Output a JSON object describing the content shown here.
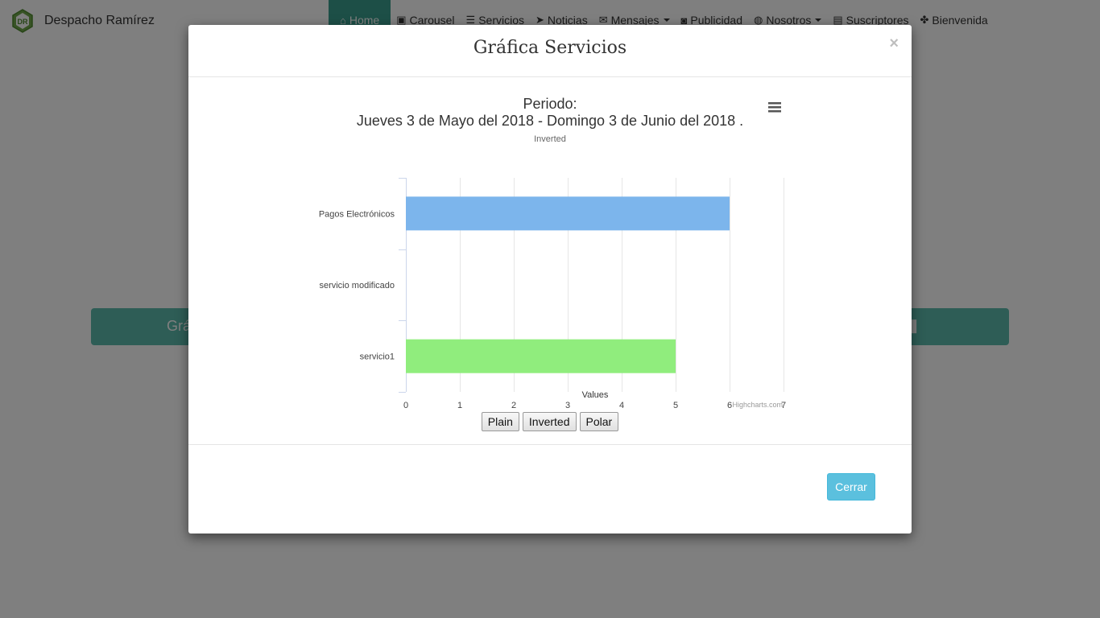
{
  "brand": {
    "name": "Despacho Ramírez",
    "logo_text": "DR"
  },
  "nav": [
    {
      "label": "Home",
      "icon": "home-icon",
      "glyph": "⌂"
    },
    {
      "label": "Carousel",
      "icon": "image-icon",
      "glyph": "▣"
    },
    {
      "label": "Servicios",
      "icon": "list-icon",
      "glyph": "☰"
    },
    {
      "label": "Noticias",
      "icon": "send-icon",
      "glyph": "➤"
    },
    {
      "label": "Mensajes",
      "icon": "envelope-icon",
      "glyph": "✉"
    },
    {
      "label": "Publicidad",
      "icon": "camera-icon",
      "glyph": "◙"
    },
    {
      "label": "Nosotros",
      "icon": "globe-icon",
      "glyph": "◍"
    },
    {
      "label": "Suscriptores",
      "icon": "list-alt-icon",
      "glyph": "▤"
    },
    {
      "label": "Bienvenida",
      "icon": "paw-icon",
      "glyph": "✤"
    }
  ],
  "page": {
    "grafica_label": "Grá",
    "grafica_icon": "bar-chart-icon"
  },
  "modal": {
    "title": "Gráfica Servicios",
    "close_label": "×",
    "buttons": {
      "plain": "Plain",
      "inverted": "Inverted",
      "polar": "Polar"
    },
    "footer_button": "Cerrar"
  },
  "colors": {
    "accent": "#3a9e8e",
    "grafica_bar": "#5cbbac",
    "info_button": "#5bc0de"
  },
  "chart_data": {
    "type": "bar",
    "orientation": "horizontal",
    "title": "Periodo:",
    "title_line2": "Jueves 3 de Mayo del 2018 - Domingo 3 de Junio del 2018 .",
    "subtitle": "Inverted",
    "categories": [
      "Pagos Electrónicos",
      "servicio modificado",
      "servicio1"
    ],
    "values": [
      6,
      0,
      5
    ],
    "colors": [
      "#7cb5ec",
      "#434348",
      "#90ed7d"
    ],
    "xlabel": "Values",
    "xlim": [
      0,
      7
    ],
    "ticks": [
      "0",
      "1",
      "2",
      "3",
      "4",
      "5",
      "6",
      "7"
    ],
    "grid": true,
    "credits": "Highcharts.com",
    "menu_icon": "hamburger-menu-icon"
  }
}
